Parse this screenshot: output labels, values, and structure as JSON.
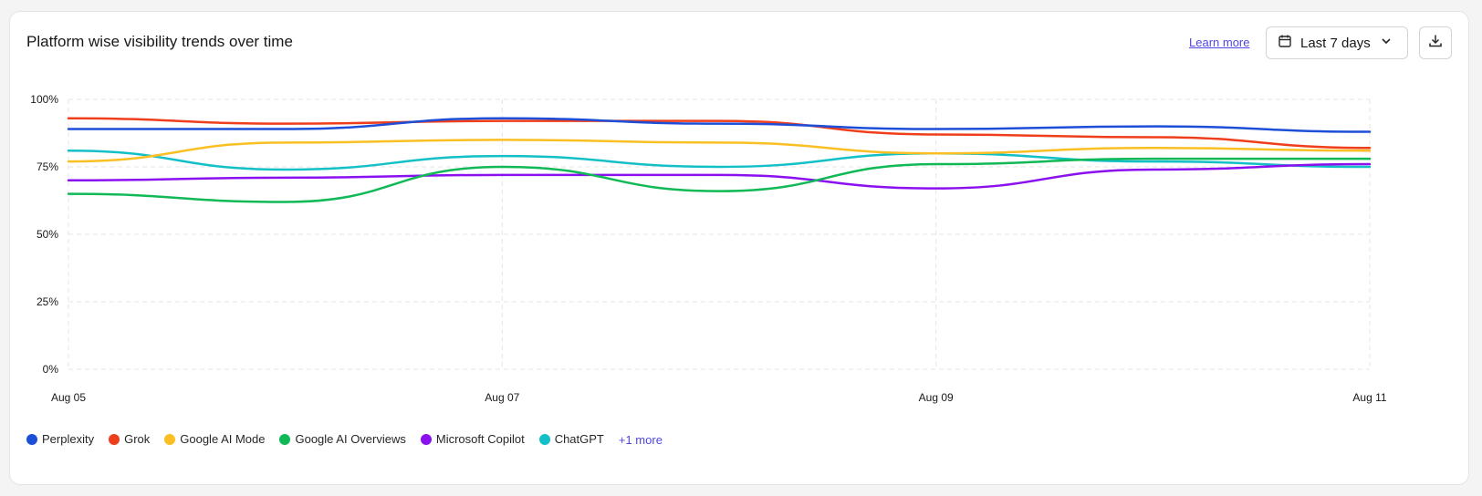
{
  "header": {
    "title": "Platform wise visibility trends over time",
    "learn_more": "Learn more",
    "range_label": "Last 7 days",
    "calendar_icon": "calendar-icon",
    "chevron_icon": "chevron-down-icon",
    "download_icon": "download-icon"
  },
  "legend": {
    "more_label": "+1 more"
  },
  "chart_data": {
    "type": "line",
    "ylim": [
      0,
      100
    ],
    "y_ticks": [
      "100%",
      "75%",
      "50%",
      "25%",
      "0%"
    ],
    "x_tick_labels": [
      "Aug 05",
      "Aug 07",
      "Aug 09",
      "Aug 11"
    ],
    "grid": true,
    "legend_position": "bottom-left",
    "x_days": [
      5,
      6,
      7,
      8,
      9,
      10,
      11
    ],
    "series": [
      {
        "name": "Perplexity",
        "color": "#1d4ed8",
        "values": [
          89,
          89,
          93,
          91,
          89,
          90,
          88
        ]
      },
      {
        "name": "Grok",
        "color": "#ef3e1c",
        "values": [
          93,
          91,
          92,
          92,
          87,
          86,
          82
        ]
      },
      {
        "name": "Google AI Mode",
        "color": "#fbbf24",
        "values": [
          77,
          84,
          85,
          84,
          80,
          82,
          81
        ]
      },
      {
        "name": "Google AI Overviews",
        "color": "#10b956",
        "values": [
          65,
          62,
          75,
          66,
          76,
          78,
          78
        ]
      },
      {
        "name": "Microsoft Copilot",
        "color": "#8b10f0",
        "values": [
          70,
          71,
          72,
          72,
          67,
          74,
          76
        ]
      },
      {
        "name": "ChatGPT",
        "color": "#14c0c8",
        "values": [
          81,
          74,
          79,
          75,
          80,
          77,
          75
        ]
      }
    ]
  }
}
